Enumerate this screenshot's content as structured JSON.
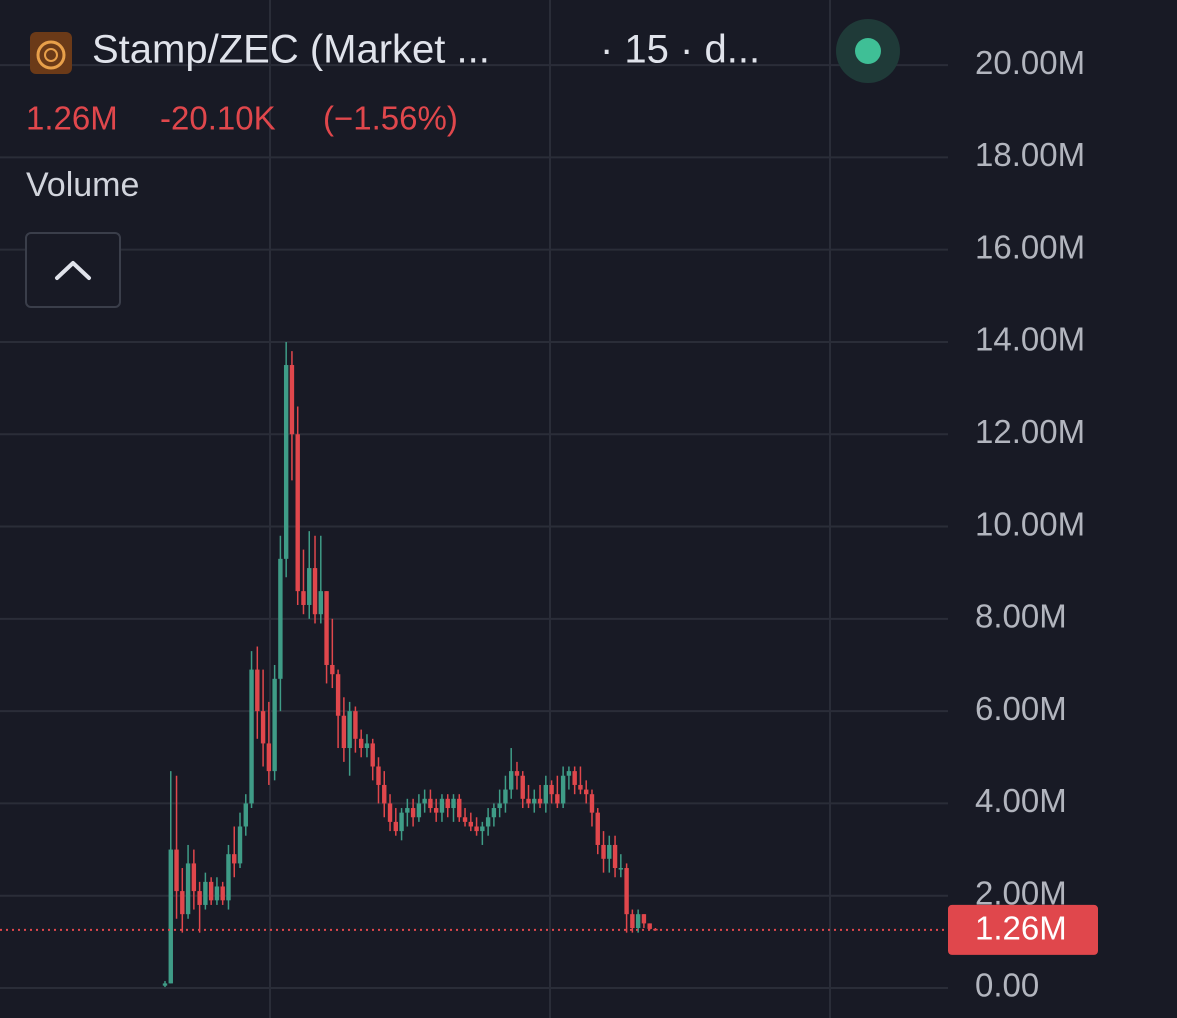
{
  "header": {
    "title": "Stamp/ZEC (Market ...",
    "interval": "· 15 · d...",
    "price": "1.26M",
    "change": "-20.10K",
    "change_pct": "(−1.56%)",
    "indicator": "Volume"
  },
  "chart_data": {
    "type": "candlestick",
    "open": [
      0.05,
      0.1,
      3.0,
      2.1,
      1.6,
      2.7,
      2.1,
      1.8,
      2.3,
      1.9,
      2.2,
      1.9,
      2.9,
      2.7,
      3.5,
      4.0,
      6.9,
      6.0,
      5.3,
      4.7,
      6.7,
      9.3,
      13.5,
      12.0,
      8.6,
      8.3,
      9.1,
      8.1,
      8.6,
      7.0,
      6.8,
      5.9,
      5.2,
      6.0,
      5.4,
      5.2,
      5.3,
      4.8,
      4.4,
      4.0,
      3.6,
      3.4,
      3.8,
      3.9,
      3.7,
      4.0,
      4.1,
      3.9,
      3.8,
      4.1,
      3.9,
      4.1,
      3.7,
      3.6,
      3.5,
      3.4,
      3.5,
      3.7,
      3.9,
      4.0,
      4.3,
      4.7,
      4.6,
      4.1,
      4.0,
      4.1,
      4.0,
      4.4,
      4.2,
      4.0,
      4.6,
      4.7,
      4.4,
      4.3,
      4.2,
      3.8,
      3.1,
      2.8,
      3.1,
      2.6,
      2.6,
      1.6,
      1.3,
      1.6,
      1.4,
      1.28
    ],
    "high": [
      0.15,
      4.7,
      4.6,
      2.6,
      3.1,
      3.0,
      2.3,
      2.5,
      2.4,
      2.4,
      2.3,
      3.1,
      3.5,
      3.8,
      4.2,
      7.3,
      7.4,
      6.9,
      6.2,
      7.0,
      9.8,
      14.0,
      13.8,
      12.6,
      9.5,
      9.9,
      9.8,
      9.8,
      8.6,
      8.0,
      6.9,
      6.3,
      6.2,
      6.1,
      5.6,
      5.5,
      5.4,
      5.0,
      4.7,
      4.2,
      3.9,
      3.9,
      4.1,
      4.1,
      4.2,
      4.3,
      4.3,
      4.1,
      4.2,
      4.2,
      4.2,
      4.2,
      3.9,
      3.8,
      3.7,
      3.6,
      3.9,
      4.0,
      4.3,
      4.6,
      5.2,
      4.9,
      4.7,
      4.4,
      4.3,
      4.4,
      4.6,
      4.5,
      4.6,
      4.8,
      4.8,
      4.8,
      4.8,
      4.5,
      4.3,
      3.9,
      3.4,
      3.3,
      3.3,
      2.9,
      2.7,
      1.7,
      1.7,
      1.6,
      1.4,
      1.3
    ],
    "low": [
      0.02,
      0.1,
      1.5,
      1.2,
      1.5,
      1.7,
      1.2,
      1.7,
      1.8,
      1.8,
      1.8,
      1.7,
      2.4,
      2.6,
      3.3,
      3.9,
      5.4,
      4.8,
      4.4,
      4.5,
      6.0,
      8.9,
      11.0,
      8.3,
      8.1,
      8.0,
      7.9,
      7.9,
      6.6,
      6.5,
      5.2,
      4.9,
      4.6,
      5.1,
      5.0,
      5.0,
      4.5,
      4.0,
      3.7,
      3.4,
      3.3,
      3.2,
      3.5,
      3.5,
      3.6,
      3.8,
      3.8,
      3.6,
      3.6,
      3.7,
      3.6,
      3.6,
      3.5,
      3.4,
      3.3,
      3.1,
      3.3,
      3.5,
      3.7,
      3.8,
      4.1,
      4.3,
      3.9,
      3.9,
      3.8,
      3.9,
      3.8,
      4.0,
      3.9,
      3.9,
      4.3,
      4.2,
      4.2,
      4.0,
      3.5,
      2.9,
      2.5,
      2.5,
      2.4,
      2.4,
      1.2,
      1.2,
      1.2,
      1.3,
      1.26,
      1.25
    ],
    "close": [
      0.1,
      3.0,
      2.1,
      1.6,
      2.7,
      2.1,
      1.8,
      2.3,
      1.9,
      2.2,
      1.9,
      2.9,
      2.7,
      3.5,
      4.0,
      6.9,
      6.0,
      5.3,
      4.7,
      6.7,
      9.3,
      13.5,
      12.0,
      8.6,
      8.3,
      9.1,
      8.1,
      8.6,
      7.0,
      6.8,
      5.9,
      5.2,
      6.0,
      5.4,
      5.2,
      5.3,
      4.8,
      4.4,
      4.0,
      3.6,
      3.4,
      3.8,
      3.9,
      3.7,
      4.0,
      4.1,
      3.9,
      3.8,
      4.1,
      3.9,
      4.1,
      3.7,
      3.6,
      3.5,
      3.4,
      3.5,
      3.7,
      3.9,
      4.0,
      4.3,
      4.7,
      4.6,
      4.1,
      4.0,
      4.1,
      4.0,
      4.4,
      4.2,
      4.0,
      4.6,
      4.7,
      4.4,
      4.3,
      4.2,
      3.8,
      3.1,
      2.8,
      3.1,
      2.6,
      2.6,
      1.6,
      1.3,
      1.6,
      1.4,
      1.28,
      1.26
    ],
    "up_color": "#3f9c87",
    "down_color": "#e0474c",
    "ylim": [
      -0.65,
      21.41
    ],
    "yticks": [
      {
        "value": 0,
        "label": "0.00"
      },
      {
        "value": 2,
        "label": "2.00M"
      },
      {
        "value": 4,
        "label": "4.00M"
      },
      {
        "value": 6,
        "label": "6.00M"
      },
      {
        "value": 8,
        "label": "8.00M"
      },
      {
        "value": 10,
        "label": "10.00M"
      },
      {
        "value": 12,
        "label": "12.00M"
      },
      {
        "value": 14,
        "label": "14.00M"
      },
      {
        "value": 16,
        "label": "16.00M"
      },
      {
        "value": 18,
        "label": "18.00M"
      },
      {
        "value": 20,
        "label": "20.00M"
      }
    ],
    "grid": true,
    "last_price": {
      "value": 1.26,
      "label": "1.26M"
    }
  }
}
